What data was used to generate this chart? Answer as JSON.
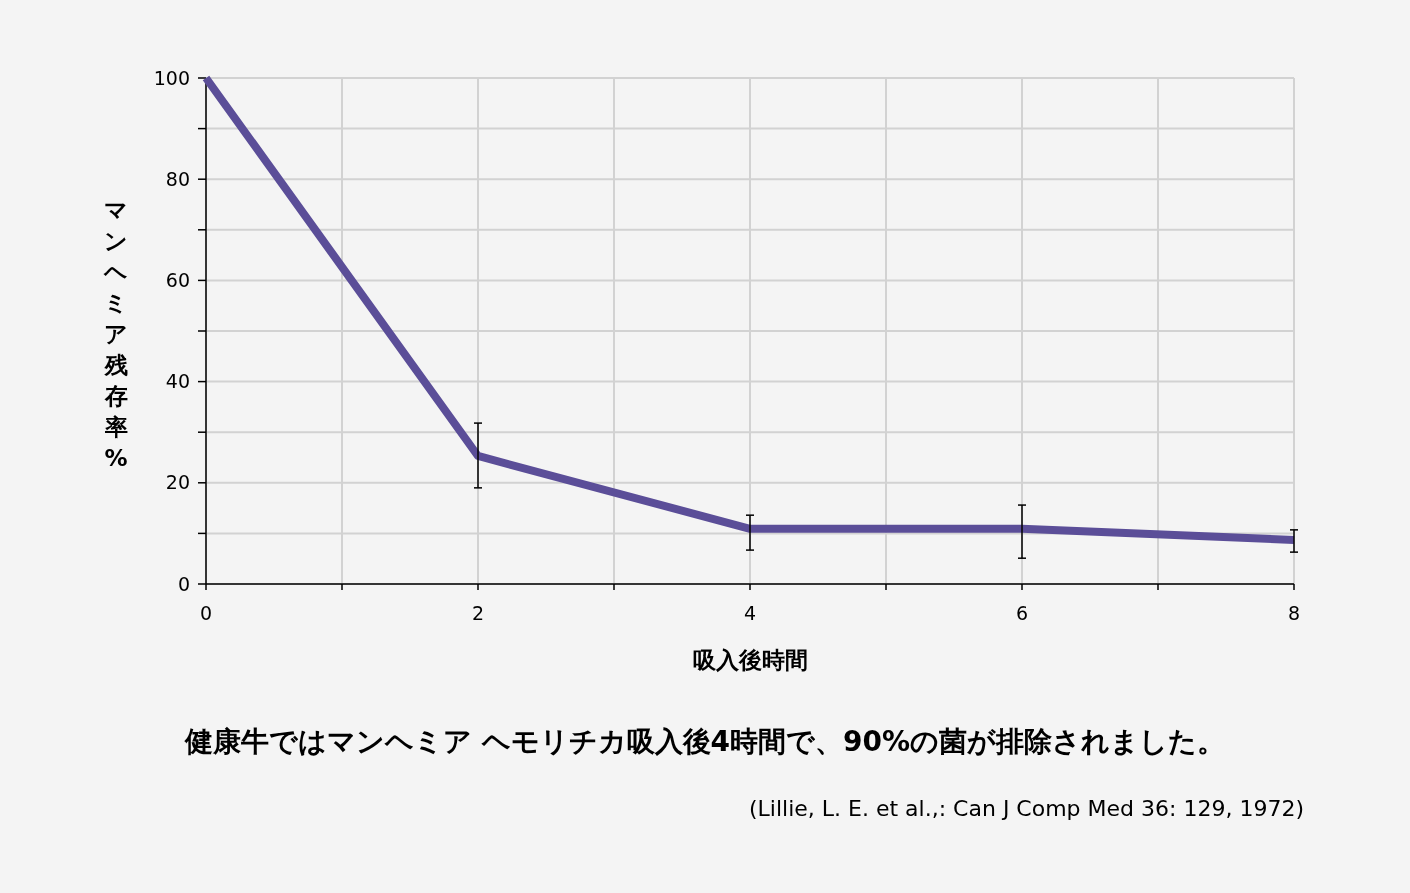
{
  "chart_data": {
    "type": "line",
    "xlabel": "吸入後時間",
    "ylabel": "マンヘミア残存率%",
    "x": [
      0,
      2,
      4,
      6,
      8
    ],
    "series": [
      {
        "color": "#5b4e98",
        "values": [
          100,
          25.3,
          10.9,
          10.9,
          8.7
        ],
        "errors": [
          null,
          [
            19,
            31.8
          ],
          [
            6.7,
            13.6
          ],
          [
            5.1,
            15.6
          ],
          [
            6.3,
            10.7
          ]
        ]
      }
    ],
    "xlim": [
      0,
      8
    ],
    "xticks": [
      0,
      {
        "value": 1,
        "label": null
      },
      2,
      {
        "value": 3,
        "label": null
      },
      4,
      {
        "value": 5,
        "label": null
      },
      6,
      {
        "value": 7,
        "label": null
      },
      8
    ],
    "ylim": [
      0,
      100
    ],
    "yticks": [
      0,
      {
        "value": 10,
        "label": null
      },
      20,
      {
        "value": 30,
        "label": null
      },
      40,
      {
        "value": 50,
        "label": null
      },
      60,
      {
        "value": 70,
        "label": null
      },
      80,
      {
        "value": 90,
        "label": null
      },
      100
    ],
    "grid": true,
    "marker": "none",
    "line_style": "solid",
    "annotations": [
      "健康牛ではマンヘミア ヘモリチカ吸入後4時間で、90%の菌が排除されました。",
      "(Lillie, L. E. et al.,: Can J Comp Med 36: 129, 1972)"
    ]
  }
}
